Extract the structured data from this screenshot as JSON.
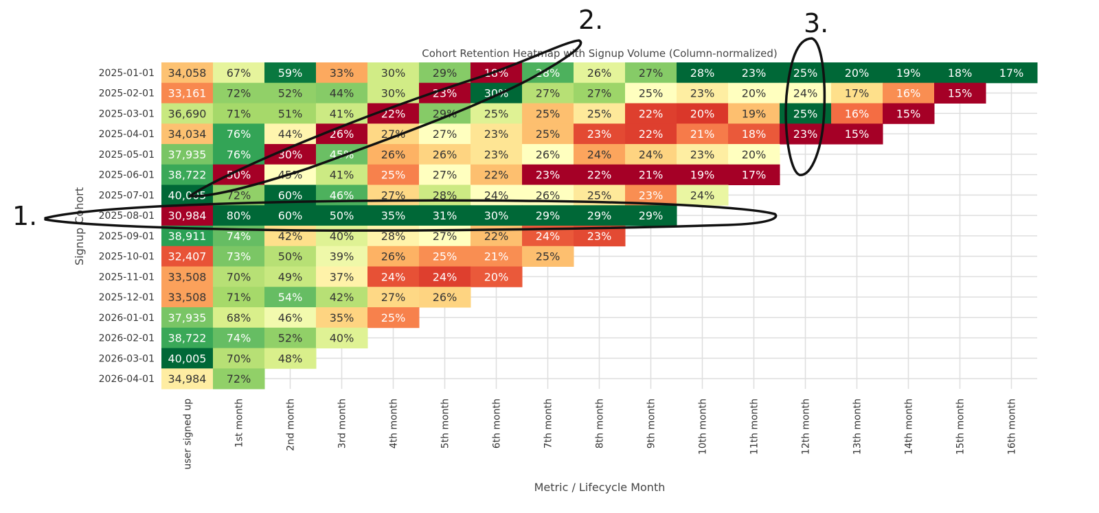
{
  "chart_data": {
    "type": "heatmap",
    "title": "Cohort Retention Heatmap with Signup Volume (Column-normalized)",
    "xlabel": "Metric / Lifecycle Month",
    "ylabel": "Signup Cohort",
    "normalization": "column",
    "colormap": "red-yellow-green",
    "grid": true,
    "columns": [
      "user signed up",
      "1st month",
      "2nd month",
      "3rd month",
      "4th month",
      "5th month",
      "6th month",
      "7th month",
      "8th month",
      "9th month",
      "10th month",
      "11th month",
      "12th month",
      "13th month",
      "14th month",
      "15th month",
      "16th month"
    ],
    "rows": [
      "2025-01-01",
      "2025-02-01",
      "2025-03-01",
      "2025-04-01",
      "2025-05-01",
      "2025-06-01",
      "2025-07-01",
      "2025-08-01",
      "2025-09-01",
      "2025-10-01",
      "2025-11-01",
      "2025-12-01",
      "2026-01-01",
      "2026-02-01",
      "2026-03-01",
      "2026-04-01"
    ],
    "values": [
      [
        34058,
        67,
        59,
        33,
        30,
        29,
        18,
        28,
        26,
        27,
        28,
        23,
        25,
        20,
        19,
        18,
        17
      ],
      [
        33161,
        72,
        52,
        44,
        30,
        23,
        30,
        27,
        27,
        25,
        23,
        20,
        24,
        17,
        16,
        15
      ],
      [
        36690,
        71,
        51,
        41,
        22,
        29,
        25,
        25,
        25,
        22,
        20,
        19,
        25,
        16,
        15
      ],
      [
        34034,
        76,
        44,
        26,
        27,
        27,
        23,
        25,
        23,
        22,
        21,
        18,
        23,
        15
      ],
      [
        37935,
        76,
        30,
        45,
        26,
        26,
        23,
        26,
        24,
        24,
        23,
        20
      ],
      [
        38722,
        50,
        45,
        41,
        25,
        27,
        22,
        23,
        22,
        21,
        19,
        17
      ],
      [
        40005,
        72,
        60,
        46,
        27,
        28,
        24,
        26,
        25,
        23,
        24
      ],
      [
        30984,
        80,
        60,
        50,
        35,
        31,
        30,
        29,
        29,
        29
      ],
      [
        38911,
        74,
        42,
        40,
        28,
        27,
        22,
        24,
        23
      ],
      [
        32407,
        73,
        50,
        39,
        26,
        25,
        21,
        25
      ],
      [
        33508,
        70,
        49,
        37,
        24,
        24,
        20
      ],
      [
        33508,
        71,
        54,
        42,
        27,
        26
      ],
      [
        37935,
        68,
        46,
        35,
        25
      ],
      [
        38722,
        74,
        52,
        40
      ],
      [
        40005,
        70,
        48
      ],
      [
        34984,
        72
      ]
    ],
    "value_format": "first column: signup count; other columns: retention %"
  },
  "annotations": {
    "labels": [
      "1.",
      "2.",
      "3."
    ],
    "ink_color": "#111111",
    "circled": [
      "row 2025-08-01",
      "diagonal 2025-07-01 to 2025-01-01 6th month",
      "column 12th month"
    ]
  }
}
